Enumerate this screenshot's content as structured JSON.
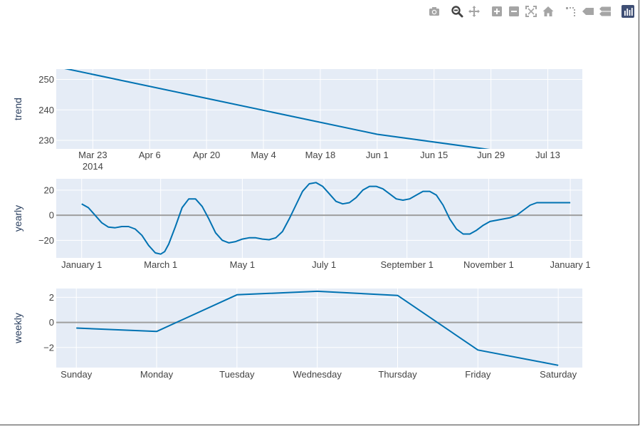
{
  "modebar": {
    "buttons": [
      {
        "name": "camera-icon",
        "title": "Download plot as a png"
      },
      {
        "name": "zoom-icon",
        "title": "Zoom"
      },
      {
        "name": "pan-icon",
        "title": "Pan"
      },
      {
        "name": "zoom-in-icon",
        "title": "Zoom in"
      },
      {
        "name": "zoom-out-icon",
        "title": "Zoom out"
      },
      {
        "name": "autoscale-icon",
        "title": "Autoscale"
      },
      {
        "name": "home-icon",
        "title": "Reset axes"
      },
      {
        "name": "spike-lines-icon",
        "title": "Toggle Spike Lines"
      },
      {
        "name": "hover-closest-icon",
        "title": "Show closest data on hover"
      },
      {
        "name": "hover-compare-icon",
        "title": "Compare data on hover"
      },
      {
        "name": "plotly-logo-icon",
        "title": "Produced with Plotly"
      }
    ],
    "colors": {
      "icon": "#a5a5a5",
      "active": "#444444",
      "logo_bg": "#3f4f75"
    }
  },
  "colors": {
    "plot_bg": "#e5ecf6",
    "grid": "#ffffff",
    "line": "#0072B2",
    "zero_line": "#9e9e9e",
    "tick_text": "#444444",
    "axis_title": "#2a3f5f"
  },
  "chart_data": [
    {
      "type": "line",
      "name": "trend",
      "ylabel": "trend",
      "x_type": "date",
      "x_ticks": [
        "Mar 23",
        "Apr 6",
        "Apr 20",
        "May 4",
        "May 18",
        "Jun 1",
        "Jun 15",
        "Jun 29",
        "Jul 13"
      ],
      "x_tick_sublabel": "2014",
      "x_tick_pos": [
        0,
        14,
        28,
        42,
        56,
        70,
        84,
        98,
        112
      ],
      "xlim": [
        -9,
        120.5
      ],
      "x": [
        -9,
        70,
        98.6
      ],
      "y": [
        254.2,
        232.0,
        226.8
      ],
      "y_ticks": [
        230,
        240,
        250
      ],
      "ylim": [
        227.2,
        253.4
      ]
    },
    {
      "type": "line",
      "name": "yearly",
      "ylabel": "yearly",
      "x_type": "day-of-year",
      "x_ticks": [
        "January  1",
        "March  1",
        "May  1",
        "July  1",
        "September  1",
        "November  1",
        "January  1"
      ],
      "x_tick_pos": [
        0,
        59,
        120,
        181,
        243,
        304,
        365
      ],
      "xlim": [
        -19,
        374
      ],
      "x": [
        0,
        5,
        10,
        15,
        20,
        25,
        30,
        35,
        40,
        45,
        50,
        55,
        59,
        62,
        65,
        70,
        75,
        80,
        85,
        90,
        95,
        100,
        105,
        110,
        115,
        120,
        125,
        130,
        135,
        140,
        145,
        150,
        155,
        160,
        165,
        170,
        175,
        180,
        185,
        190,
        195,
        200,
        205,
        210,
        215,
        220,
        225,
        230,
        235,
        240,
        245,
        250,
        255,
        260,
        265,
        270,
        275,
        280,
        285,
        290,
        295,
        300,
        305,
        310,
        315,
        320,
        325,
        330,
        335,
        340,
        345,
        350,
        355,
        360,
        365
      ],
      "y": [
        9,
        6,
        0,
        -6,
        -9.5,
        -10,
        -9,
        -9,
        -11,
        -16,
        -24,
        -30,
        -31,
        -29,
        -23,
        -9,
        6,
        13,
        13,
        7,
        -3,
        -14,
        -20,
        -22,
        -21,
        -19,
        -18,
        -18,
        -19,
        -19.5,
        -18,
        -13,
        -3,
        8,
        19,
        25,
        26,
        23,
        17,
        11,
        9,
        10,
        14,
        20,
        23,
        23,
        21,
        17,
        13,
        12,
        13,
        16,
        19,
        19,
        16,
        8,
        -3,
        -11,
        -15,
        -15,
        -12,
        -8,
        -5,
        -4,
        -3,
        -2,
        0,
        4,
        8,
        10,
        10,
        10,
        10,
        10,
        10
      ],
      "y_ticks": [
        -20,
        0,
        20
      ],
      "ylim": [
        -34,
        29
      ],
      "zero_line": true
    },
    {
      "type": "line",
      "name": "weekly",
      "ylabel": "weekly",
      "categories": [
        "Sunday",
        "Monday",
        "Tuesday",
        "Wednesday",
        "Thursday",
        "Friday",
        "Saturday"
      ],
      "x_ticks": [
        "Sunday",
        "Monday",
        "Tuesday",
        "Wednesday",
        "Thursday",
        "Friday",
        "Saturday"
      ],
      "x_tick_pos": [
        0,
        1,
        2,
        3,
        4,
        5,
        6
      ],
      "xlim": [
        -0.25,
        6.3
      ],
      "x": [
        0,
        1,
        2,
        3,
        4,
        5,
        6
      ],
      "y": [
        -0.45,
        -0.72,
        2.2,
        2.48,
        2.15,
        -2.2,
        -3.42
      ],
      "y_ticks": [
        -2,
        0,
        2
      ],
      "ylim": [
        -3.6,
        2.7
      ],
      "zero_line": true
    }
  ]
}
